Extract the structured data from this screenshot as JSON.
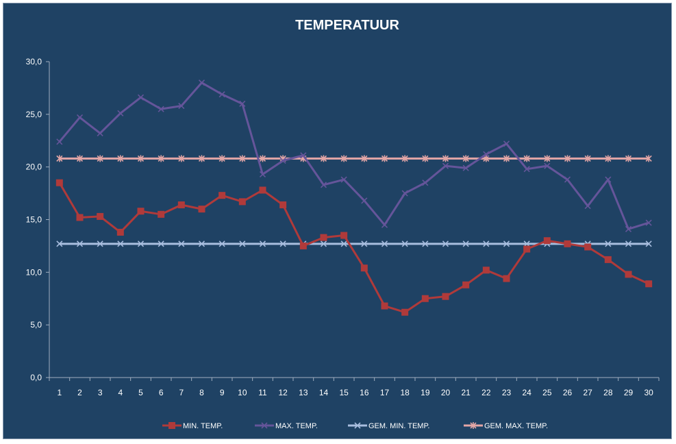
{
  "chart_data": {
    "type": "line",
    "title": "TEMPERATUUR",
    "xlabel": "",
    "ylabel": "",
    "x": [
      1,
      2,
      3,
      4,
      5,
      6,
      7,
      8,
      9,
      10,
      11,
      12,
      13,
      14,
      15,
      16,
      17,
      18,
      19,
      20,
      21,
      22,
      23,
      24,
      25,
      26,
      27,
      28,
      29,
      30
    ],
    "ylim": [
      0,
      30
    ],
    "ytick_values": [
      0,
      5,
      10,
      15,
      20,
      25,
      30
    ],
    "ytick_labels": [
      "0,0",
      "5,0",
      "10,0",
      "15,0",
      "20,0",
      "25,0",
      "30,0"
    ],
    "grid": false,
    "legend_position": "bottom",
    "series": [
      {
        "name": "MIN. TEMP.",
        "color": "#b03a3a",
        "marker": "square",
        "values": [
          18.5,
          15.2,
          15.3,
          13.8,
          15.8,
          15.5,
          16.4,
          16.0,
          17.3,
          16.7,
          17.8,
          16.4,
          12.5,
          13.3,
          13.5,
          10.4,
          6.8,
          6.2,
          7.5,
          7.7,
          8.8,
          10.2,
          9.4,
          12.2,
          13.0,
          12.7,
          12.4,
          11.2,
          9.8,
          8.9
        ]
      },
      {
        "name": "MAX. TEMP.",
        "color": "#65559a",
        "marker": "x",
        "values": [
          22.4,
          24.7,
          23.2,
          25.1,
          26.6,
          25.5,
          25.8,
          28.0,
          26.9,
          26.0,
          19.3,
          20.6,
          21.1,
          18.3,
          18.8,
          16.8,
          14.5,
          17.5,
          18.5,
          20.1,
          19.9,
          21.2,
          22.2,
          19.8,
          20.1,
          18.8,
          16.3,
          18.8,
          14.1,
          14.7
        ]
      },
      {
        "name": "GEM. MIN. TEMP.",
        "color": "#a9bedf",
        "marker": "x",
        "values": [
          12.7,
          12.7,
          12.7,
          12.7,
          12.7,
          12.7,
          12.7,
          12.7,
          12.7,
          12.7,
          12.7,
          12.7,
          12.7,
          12.7,
          12.7,
          12.7,
          12.7,
          12.7,
          12.7,
          12.7,
          12.7,
          12.7,
          12.7,
          12.7,
          12.7,
          12.7,
          12.7,
          12.7,
          12.7,
          12.7
        ]
      },
      {
        "name": "GEM. MAX. TEMP.",
        "color": "#e3a6a6",
        "marker": "asterisk",
        "values": [
          20.8,
          20.8,
          20.8,
          20.8,
          20.8,
          20.8,
          20.8,
          20.8,
          20.8,
          20.8,
          20.8,
          20.8,
          20.8,
          20.8,
          20.8,
          20.8,
          20.8,
          20.8,
          20.8,
          20.8,
          20.8,
          20.8,
          20.8,
          20.8,
          20.8,
          20.8,
          20.8,
          20.8,
          20.8,
          20.8
        ]
      }
    ]
  },
  "colors": {
    "background": "#1f4264",
    "axis": "#a0aec0",
    "text": "#ffffff"
  }
}
